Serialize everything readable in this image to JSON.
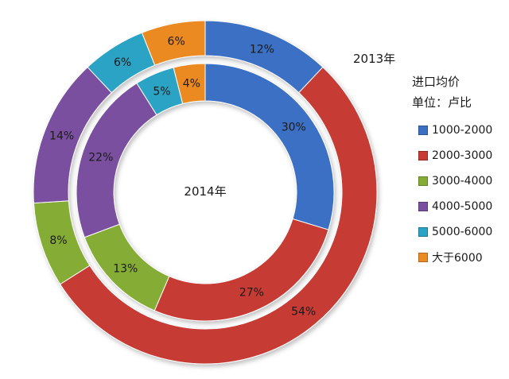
{
  "chart_data": {
    "type": "donut",
    "legend": {
      "title": "进口均价",
      "unit": "单位：卢比",
      "placement": "right"
    },
    "categories": [
      "1000-2000",
      "2000-3000",
      "3000-4000",
      "4000-5000",
      "5000-6000",
      "大于6000"
    ],
    "colors": [
      "#3a6fc4",
      "#c73a36",
      "#85ad35",
      "#7a4f9f",
      "#2ba3c4",
      "#ec8a24"
    ],
    "series": [
      {
        "name": "2013年",
        "values": [
          12,
          54,
          8,
          14,
          6,
          6
        ],
        "labels": [
          "12%",
          "54%",
          "8%",
          "14%",
          "6%",
          "6%"
        ]
      },
      {
        "name": "2014年",
        "values": [
          30,
          27,
          13,
          22,
          5,
          4
        ],
        "labels": [
          "30%",
          "27%",
          "13%",
          "22%",
          "5%",
          "4%"
        ]
      }
    ]
  }
}
